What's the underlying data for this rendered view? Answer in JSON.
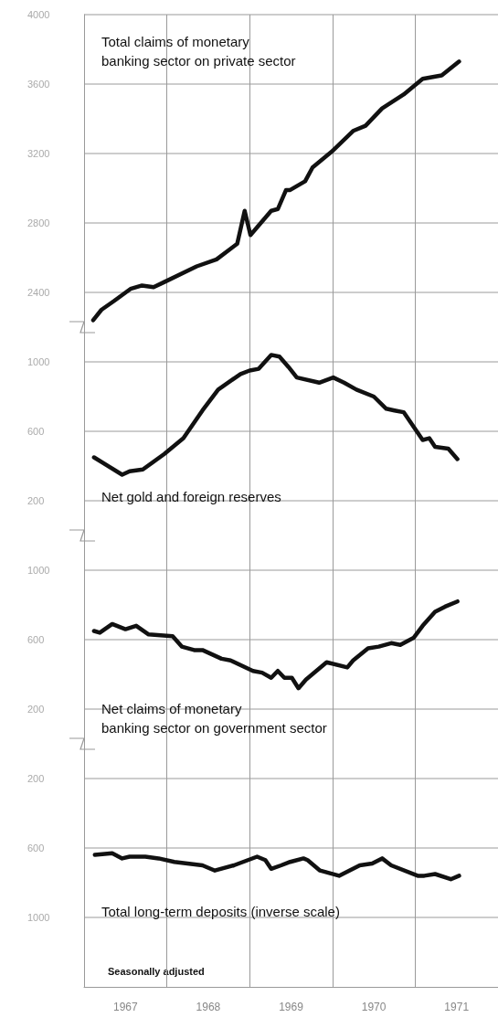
{
  "chart_data": [
    {
      "type": "line",
      "title": "Total claims of monetary\nbanking sector on private sector",
      "xlim": [
        1967,
        1972
      ],
      "ylim": [
        2200,
        4000
      ],
      "yticks": [
        2400,
        2800,
        3200,
        3600,
        4000
      ],
      "grid": true,
      "tick_labels": "y",
      "marker": "none",
      "line_style": "solid",
      "series": [
        {
          "color": "#111111",
          "x": [
            1967.11,
            1967.21,
            1967.36,
            1967.56,
            1967.7,
            1967.84,
            1967.97,
            1968.36,
            1968.6,
            1968.85,
            1968.94,
            1969.01,
            1969.26,
            1969.34,
            1969.44,
            1969.49,
            1969.67,
            1969.76,
            1969.99,
            1970.25,
            1970.4,
            1970.6,
            1970.86,
            1971.09,
            1971.32,
            1971.53
          ],
          "values": [
            2240,
            2300,
            2350,
            2420,
            2440,
            2430,
            2460,
            2550,
            2590,
            2680,
            2870,
            2730,
            2870,
            2880,
            2990,
            2990,
            3040,
            3120,
            3210,
            3330,
            3360,
            3460,
            3540,
            3630,
            3650,
            3730
          ]
        }
      ]
    },
    {
      "type": "line",
      "title": "Net gold and foreign reserves",
      "xlim": [
        1967,
        1972
      ],
      "ylim": [
        0,
        1200
      ],
      "yticks": [
        200,
        600,
        1000
      ],
      "grid": true,
      "tick_labels": "y",
      "marker": "none",
      "line_style": "solid",
      "series": [
        {
          "color": "#111111",
          "x": [
            1967.12,
            1967.46,
            1967.55,
            1967.71,
            1967.97,
            1968.2,
            1968.43,
            1968.62,
            1968.89,
            1969.0,
            1969.11,
            1969.26,
            1969.36,
            1969.47,
            1969.57,
            1969.84,
            1970.01,
            1970.14,
            1970.29,
            1970.5,
            1970.65,
            1970.75,
            1970.86,
            1971.09,
            1971.17,
            1971.24,
            1971.4,
            1971.51
          ],
          "values": [
            450,
            350,
            370,
            380,
            470,
            560,
            720,
            840,
            930,
            950,
            960,
            1040,
            1030,
            970,
            910,
            880,
            910,
            880,
            840,
            800,
            730,
            720,
            710,
            550,
            560,
            510,
            500,
            440
          ]
        }
      ]
    },
    {
      "type": "line",
      "title": "Net claims of monetary\nbanking sector on government sector",
      "xlim": [
        1967,
        1972
      ],
      "ylim": [
        0,
        1200
      ],
      "yticks": [
        200,
        600,
        1000
      ],
      "grid": true,
      "tick_labels": "y",
      "marker": "none",
      "line_style": "solid",
      "series": [
        {
          "color": "#111111",
          "x": [
            1967.12,
            1967.19,
            1967.34,
            1967.5,
            1967.63,
            1967.78,
            1968.07,
            1968.18,
            1968.33,
            1968.43,
            1968.66,
            1968.77,
            1969.04,
            1969.15,
            1969.26,
            1969.34,
            1969.42,
            1969.51,
            1969.59,
            1969.68,
            1969.93,
            1970.18,
            1970.25,
            1970.43,
            1970.56,
            1970.71,
            1970.82,
            1970.98,
            1971.09,
            1971.24,
            1971.36,
            1971.51
          ],
          "values": [
            650,
            640,
            690,
            660,
            680,
            630,
            620,
            560,
            540,
            540,
            490,
            480,
            420,
            410,
            380,
            420,
            380,
            380,
            320,
            370,
            470,
            440,
            480,
            550,
            560,
            580,
            570,
            610,
            680,
            760,
            790,
            820
          ]
        }
      ]
    },
    {
      "type": "line",
      "title": "Total long-term deposits (inverse scale)",
      "annotations": [
        "Seasonally adjusted"
      ],
      "xlim": [
        1967,
        1972
      ],
      "xticks": [
        {
          "value": 1967.5,
          "label": "1967"
        },
        {
          "value": 1968.5,
          "label": "1968"
        },
        {
          "value": 1969.5,
          "label": "1969"
        },
        {
          "value": 1970.5,
          "label": "1970"
        },
        {
          "value": 1971.5,
          "label": "1971"
        }
      ],
      "ylim": [
        1400,
        0
      ],
      "yticks": [
        200,
        600,
        1000
      ],
      "grid": true,
      "marker": "none",
      "line_style": "solid",
      "series": [
        {
          "color": "#111111",
          "x": [
            1967.13,
            1967.34,
            1967.46,
            1967.55,
            1967.74,
            1967.9,
            1968.09,
            1968.43,
            1968.58,
            1968.81,
            1969.09,
            1969.19,
            1969.26,
            1969.38,
            1969.49,
            1969.65,
            1969.7,
            1969.85,
            1970.08,
            1970.33,
            1970.48,
            1970.6,
            1970.71,
            1971.03,
            1971.11,
            1971.24,
            1971.43,
            1971.53
          ],
          "values": [
            640,
            630,
            660,
            650,
            650,
            660,
            680,
            700,
            730,
            700,
            650,
            670,
            720,
            700,
            680,
            660,
            670,
            730,
            760,
            700,
            690,
            660,
            700,
            760,
            760,
            750,
            780,
            760
          ]
        }
      ]
    }
  ]
}
